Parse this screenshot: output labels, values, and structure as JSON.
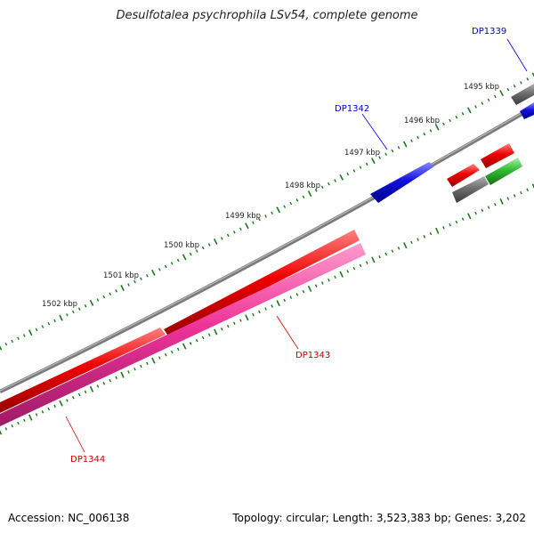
{
  "title": "Desulfotalea psychrophila LSv54, complete genome",
  "footer": {
    "accession": "Accession: NC_006138",
    "stats": "Topology: circular; Length: 3,523,383 bp; Genes: 3,202"
  },
  "colors": {
    "backbone": "#808080",
    "tick": "#1a7a1a",
    "label_red": "#cc0000",
    "label_blue": "#0000cc",
    "red": "#ee0000",
    "magenta": "#ee3399",
    "blue": "#1111dd",
    "gray": "#6e6e6e",
    "green": "#33bb33"
  },
  "ticks": [
    {
      "text": "1495 kbp"
    },
    {
      "text": "1496 kbp"
    },
    {
      "text": "1497 kbp"
    },
    {
      "text": "1498 kbp"
    },
    {
      "text": "1499 kbp"
    },
    {
      "text": "1500 kbp"
    },
    {
      "text": "1501 kbp"
    },
    {
      "text": "1502 kbp"
    }
  ],
  "gene_labels": [
    {
      "text": "DP1339",
      "color": "blue"
    },
    {
      "text": "DP1342",
      "color": "blue"
    },
    {
      "text": "DP1343",
      "color": "red"
    },
    {
      "text": "DP1344",
      "color": "red"
    }
  ]
}
